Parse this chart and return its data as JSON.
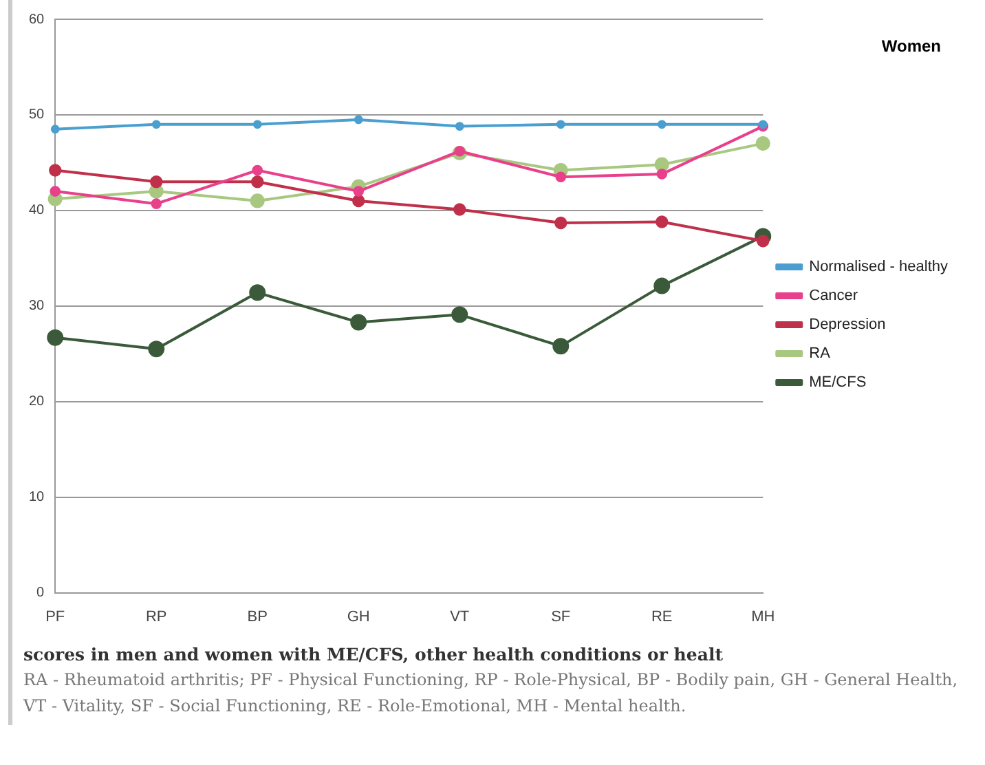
{
  "chart_data": {
    "type": "line",
    "title": "Women",
    "categories": [
      "PF",
      "RP",
      "BP",
      "GH",
      "VT",
      "SF",
      "RE",
      "MH"
    ],
    "series": [
      {
        "name": "Normalised - healthy",
        "color": "#4a9fd0",
        "values": [
          48.5,
          49,
          49,
          49.5,
          48.8,
          49,
          49,
          49
        ]
      },
      {
        "name": "Cancer",
        "color": "#e8408a",
        "values": [
          42,
          40.7,
          44.2,
          42,
          46.2,
          43.5,
          43.8,
          48.8
        ]
      },
      {
        "name": "Depression",
        "color": "#c0304a",
        "values": [
          44.2,
          43,
          43,
          41,
          40.1,
          38.7,
          38.8,
          36.8
        ]
      },
      {
        "name": "RA",
        "color": "#a8c880",
        "values": [
          41.2,
          42,
          41,
          42.5,
          46,
          44.2,
          44.8,
          47
        ]
      },
      {
        "name": "ME/CFS",
        "color": "#3a5a3a",
        "values": [
          26.7,
          25.5,
          31.4,
          28.3,
          29.1,
          25.8,
          32.1,
          37.3
        ]
      }
    ],
    "ylim": [
      0,
      60
    ],
    "yticks": [
      0,
      10,
      20,
      30,
      40,
      50,
      60
    ],
    "grid": "y",
    "legend": "right",
    "marker": "circle",
    "line_style": "solid",
    "annotations": [
      "scores in men and women with ME/CFS, other health conditions or healt",
      "RA - Rheumatoid arthritis; PF - Physical Functioning, RP - Role-Physical, BP - Bodily pain, GH - General Health, VT - Vitality, SF - Social Functioning, RE - Role-Emotional, MH - Mental health."
    ]
  }
}
